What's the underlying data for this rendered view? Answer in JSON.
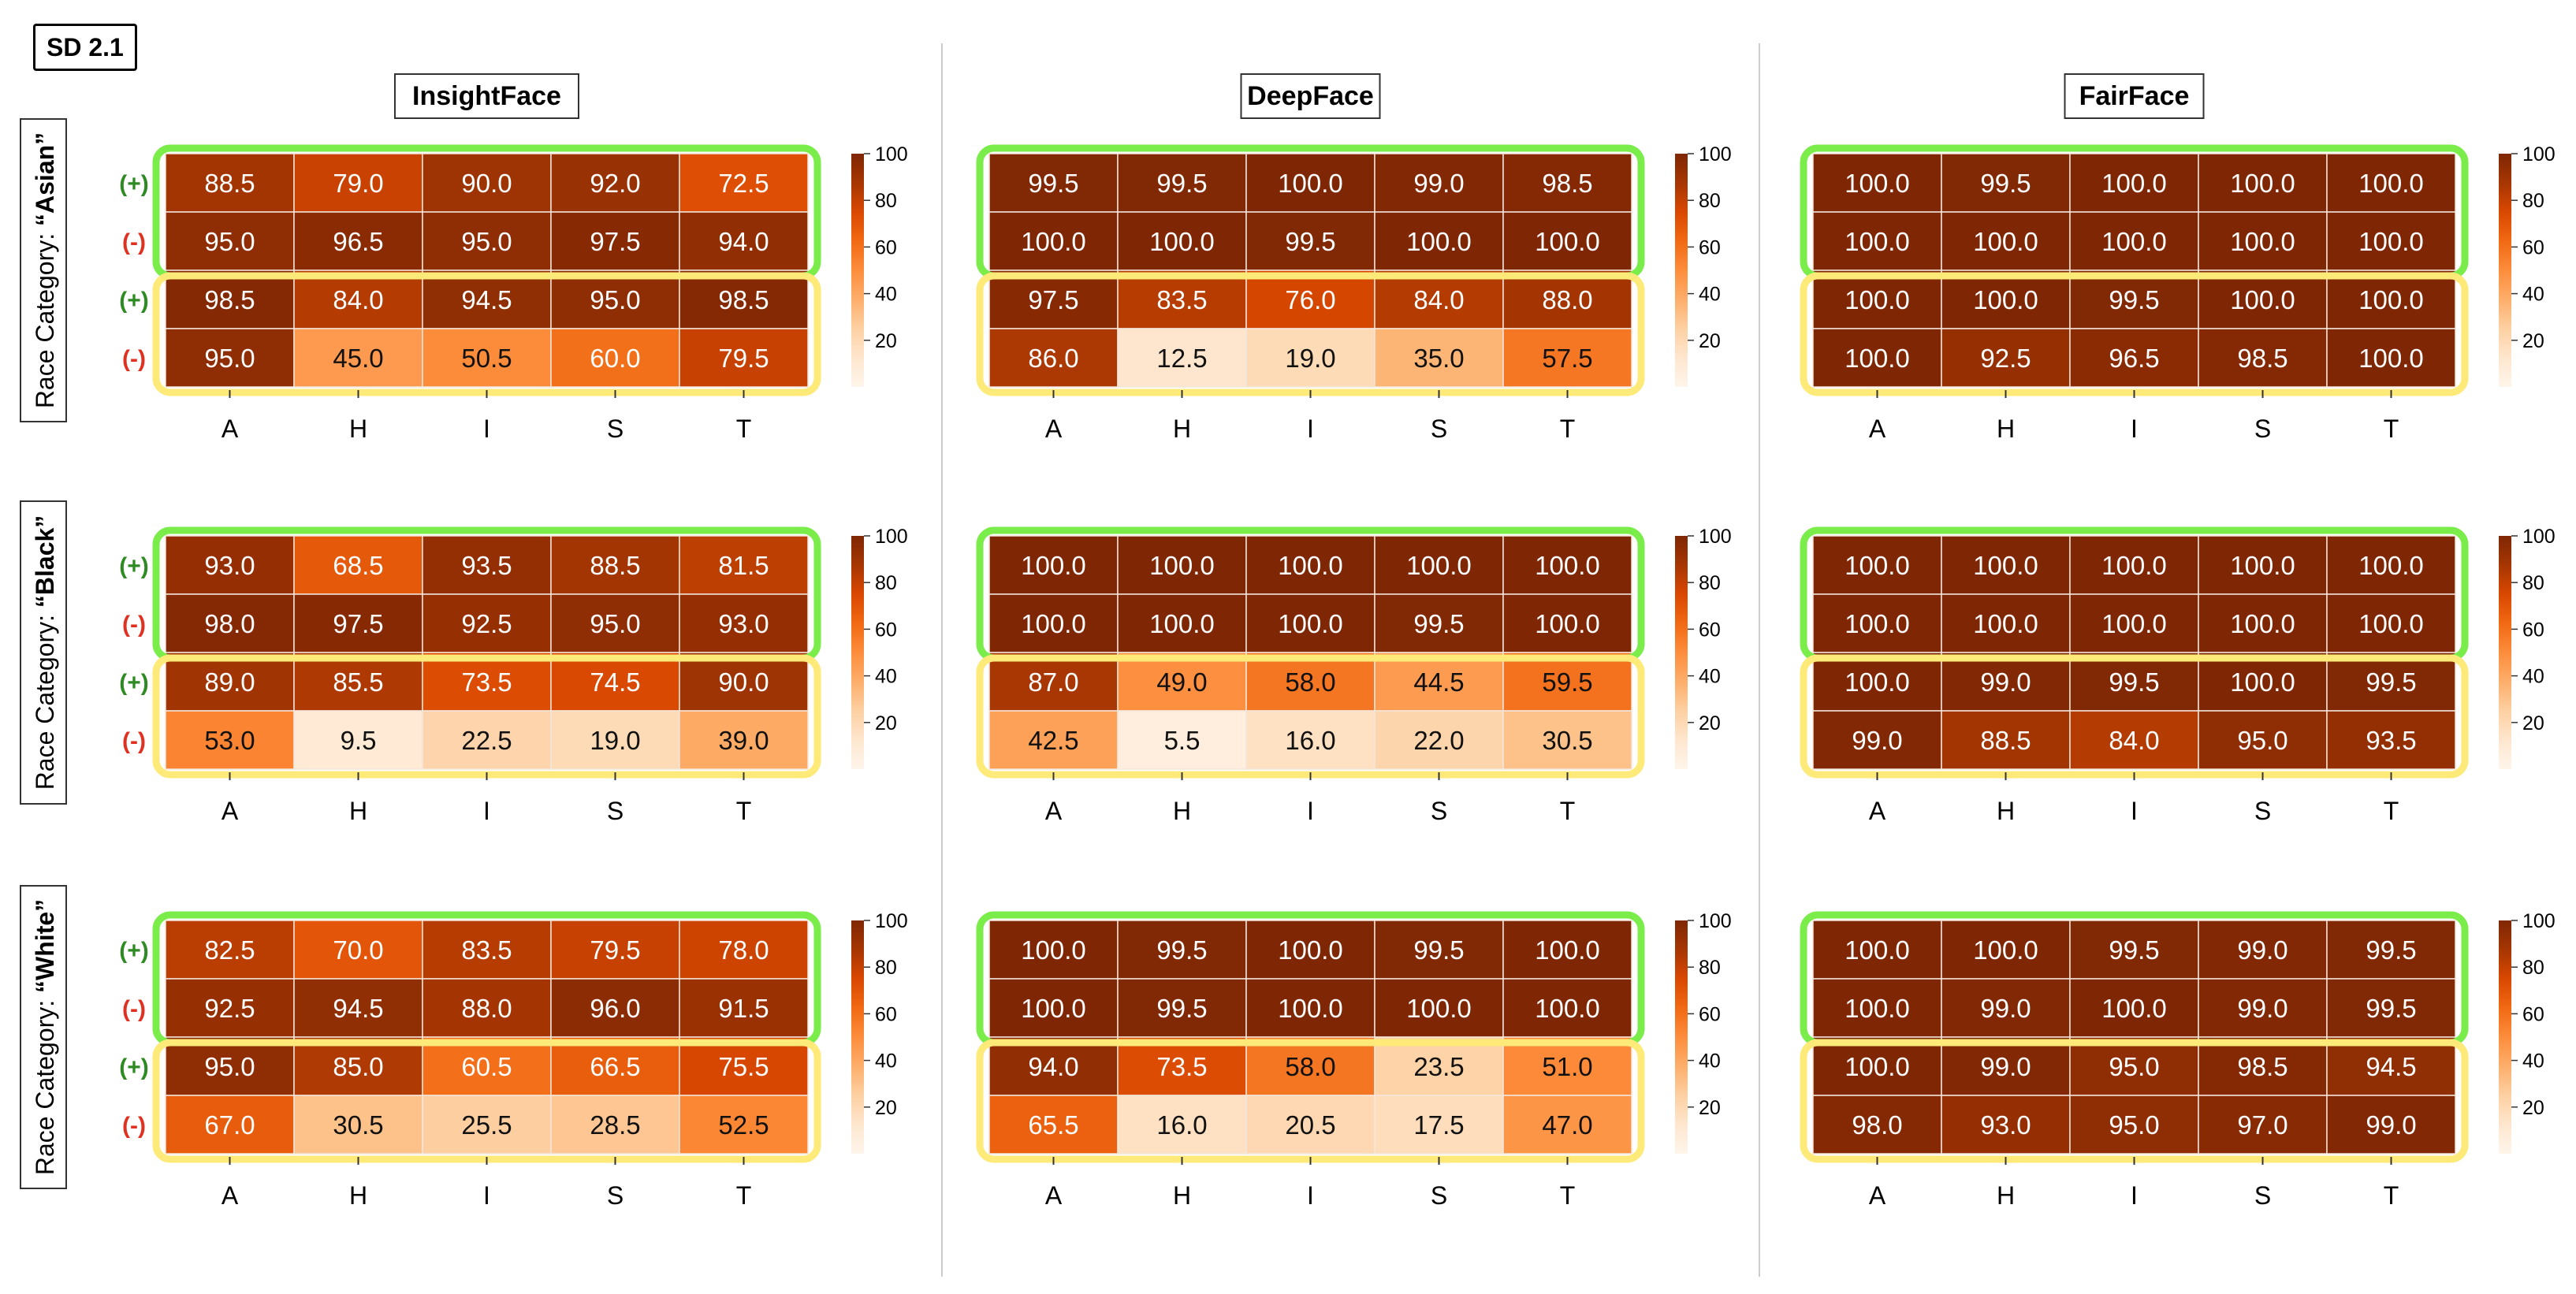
{
  "figure_tag": "SD 2.1",
  "columns": [
    "InsightFace",
    "DeepFace",
    "FairFace"
  ],
  "rows": [
    {
      "prefix": "Race Category: ",
      "name": "“Asian”"
    },
    {
      "prefix": "Race Category: ",
      "name": "“Black”"
    },
    {
      "prefix": "Race Category: ",
      "name": "“White”"
    }
  ],
  "row_sign_labels": [
    "(+)",
    "(-)",
    "(+)",
    "(-)"
  ],
  "colors": {
    "green_box": "#7aed4a",
    "yellow_box": "#fdea78",
    "plus": "#2e8a22",
    "minus": "#e03020"
  },
  "chart_data": {
    "type": "heatmap",
    "categories": [
      "A",
      "H",
      "I",
      "S",
      "T"
    ],
    "colorbar": {
      "range": [
        0,
        100
      ],
      "ticks": [
        "100",
        "80",
        "60",
        "40",
        "20"
      ],
      "colormap": "Oranges"
    },
    "panels": [
      {
        "column": "InsightFace",
        "row": "Asian",
        "values": [
          [
            88.5,
            79.0,
            90.0,
            92.0,
            72.5
          ],
          [
            95.0,
            96.5,
            95.0,
            97.5,
            94.0
          ],
          [
            98.5,
            84.0,
            94.5,
            95.0,
            98.5
          ],
          [
            95.0,
            45.0,
            50.5,
            60.0,
            79.5
          ]
        ]
      },
      {
        "column": "DeepFace",
        "row": "Asian",
        "values": [
          [
            99.5,
            99.5,
            100.0,
            99.0,
            98.5
          ],
          [
            100.0,
            100.0,
            99.5,
            100.0,
            100.0
          ],
          [
            97.5,
            83.5,
            76.0,
            84.0,
            88.0
          ],
          [
            86.0,
            12.5,
            19.0,
            35.0,
            57.5
          ]
        ]
      },
      {
        "column": "FairFace",
        "row": "Asian",
        "values": [
          [
            100.0,
            99.5,
            100.0,
            100.0,
            100.0
          ],
          [
            100.0,
            100.0,
            100.0,
            100.0,
            100.0
          ],
          [
            100.0,
            100.0,
            99.5,
            100.0,
            100.0
          ],
          [
            100.0,
            92.5,
            96.5,
            98.5,
            100.0
          ]
        ]
      },
      {
        "column": "InsightFace",
        "row": "Black",
        "values": [
          [
            93.0,
            68.5,
            93.5,
            88.5,
            81.5
          ],
          [
            98.0,
            97.5,
            92.5,
            95.0,
            93.0
          ],
          [
            89.0,
            85.5,
            73.5,
            74.5,
            90.0
          ],
          [
            53.0,
            9.5,
            22.5,
            19.0,
            39.0
          ]
        ]
      },
      {
        "column": "DeepFace",
        "row": "Black",
        "values": [
          [
            100.0,
            100.0,
            100.0,
            100.0,
            100.0
          ],
          [
            100.0,
            100.0,
            100.0,
            99.5,
            100.0
          ],
          [
            87.0,
            49.0,
            58.0,
            44.5,
            59.5
          ],
          [
            42.5,
            5.5,
            16.0,
            22.0,
            30.5
          ]
        ]
      },
      {
        "column": "FairFace",
        "row": "Black",
        "values": [
          [
            100.0,
            100.0,
            100.0,
            100.0,
            100.0
          ],
          [
            100.0,
            100.0,
            100.0,
            100.0,
            100.0
          ],
          [
            100.0,
            99.0,
            99.5,
            100.0,
            99.5
          ],
          [
            99.0,
            88.5,
            84.0,
            95.0,
            93.5
          ]
        ]
      },
      {
        "column": "InsightFace",
        "row": "White",
        "values": [
          [
            82.5,
            70.0,
            83.5,
            79.5,
            78.0
          ],
          [
            92.5,
            94.5,
            88.0,
            96.0,
            91.5
          ],
          [
            95.0,
            85.0,
            60.5,
            66.5,
            75.5
          ],
          [
            67.0,
            30.5,
            25.5,
            28.5,
            52.5
          ]
        ]
      },
      {
        "column": "DeepFace",
        "row": "White",
        "values": [
          [
            100.0,
            99.5,
            100.0,
            99.5,
            100.0
          ],
          [
            100.0,
            99.5,
            100.0,
            100.0,
            100.0
          ],
          [
            94.0,
            73.5,
            58.0,
            23.5,
            51.0
          ],
          [
            65.5,
            16.0,
            20.5,
            17.5,
            47.0
          ]
        ]
      },
      {
        "column": "FairFace",
        "row": "White",
        "values": [
          [
            100.0,
            100.0,
            99.5,
            99.0,
            99.5
          ],
          [
            100.0,
            99.0,
            100.0,
            99.0,
            99.5
          ],
          [
            100.0,
            99.0,
            95.0,
            98.5,
            94.5
          ],
          [
            98.0,
            93.0,
            95.0,
            97.0,
            99.0
          ]
        ]
      }
    ]
  }
}
